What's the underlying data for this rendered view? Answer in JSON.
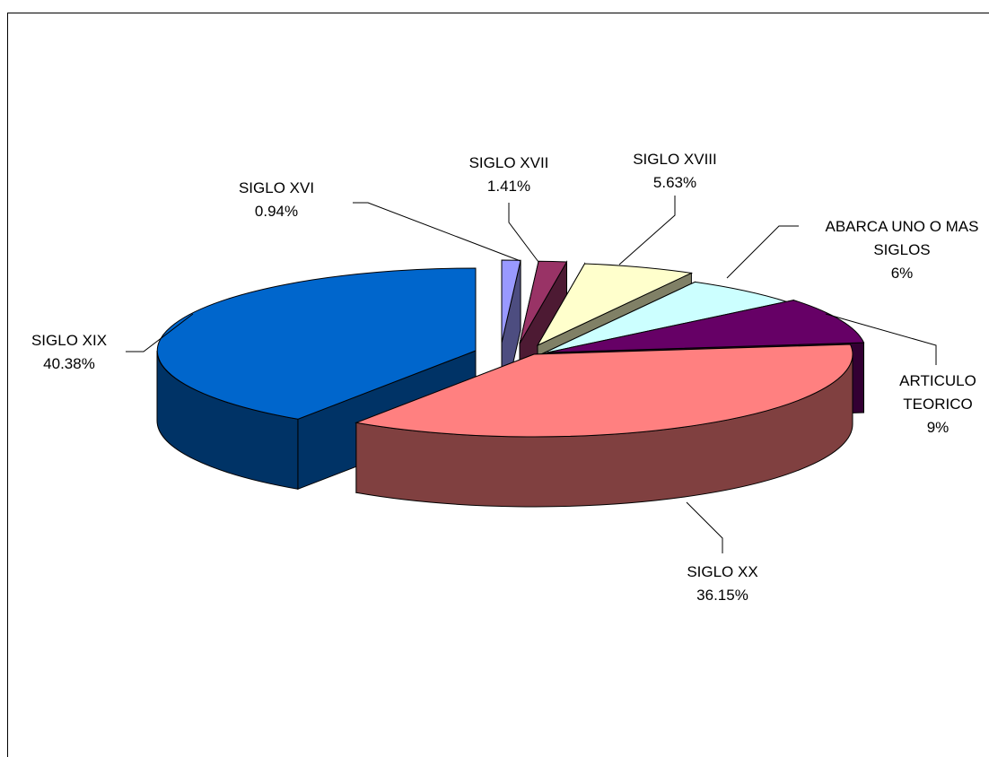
{
  "chart_data": {
    "type": "pie",
    "style": "3d-exploded",
    "title": "",
    "legend": "none",
    "slices": [
      {
        "label_lines": [
          "SIGLO XVI"
        ],
        "value": 0.94,
        "value_label": "0.94%",
        "color": "#9999ff"
      },
      {
        "label_lines": [
          "SIGLO XVII"
        ],
        "value": 1.41,
        "value_label": "1.41%",
        "color": "#993366"
      },
      {
        "label_lines": [
          "SIGLO XVIII"
        ],
        "value": 5.63,
        "value_label": "5.63%",
        "color": "#ffffcc"
      },
      {
        "label_lines": [
          "ABARCA UNO O MAS",
          "SIGLOS"
        ],
        "value": 6,
        "value_label": "6%",
        "color": "#ccffff"
      },
      {
        "label_lines": [
          "ARTICULO",
          "TEORICO"
        ],
        "value": 9,
        "value_label": "9%",
        "color": "#660066"
      },
      {
        "label_lines": [
          "SIGLO XX"
        ],
        "value": 36.15,
        "value_label": "36.15%",
        "color": "#ff8080"
      },
      {
        "label_lines": [
          "SIGLO XIX"
        ],
        "value": 40.38,
        "value_label": "40.38%",
        "color": "#0066cc"
      }
    ]
  }
}
